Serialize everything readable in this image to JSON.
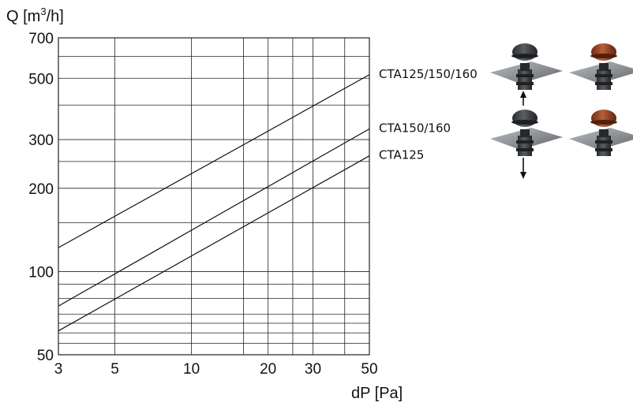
{
  "chart_data": {
    "type": "line",
    "title": "",
    "xlabel": "dP [Pa]",
    "ylabel_main": "Q [m",
    "ylabel_sup": "3",
    "ylabel_tail": "/h]",
    "x_scale": "log",
    "y_scale": "log",
    "xlim": [
      3,
      50
    ],
    "ylim": [
      50,
      700
    ],
    "grid": true,
    "legend": "labels at line ends (right)",
    "x_ticks": [
      3,
      5,
      10,
      20,
      30,
      50
    ],
    "x_tick_labels": [
      "3",
      "5",
      "10",
      "20",
      "30",
      "50"
    ],
    "y_ticks": [
      50,
      100,
      200,
      300,
      500,
      700
    ],
    "y_tick_labels": [
      "50",
      "100",
      "200",
      "300",
      "500",
      "700"
    ],
    "x_gridlines": [
      3,
      5,
      10,
      16,
      20,
      25,
      30,
      40,
      50
    ],
    "y_gridlines": [
      50,
      55,
      60,
      65,
      70,
      80,
      90,
      100,
      150,
      200,
      250,
      300,
      400,
      500,
      600,
      700
    ],
    "series": [
      {
        "name": "CTA125/150/160",
        "x": [
          3,
          50
        ],
        "y": [
          122,
          515
        ]
      },
      {
        "name": "CTA150/160",
        "x": [
          3,
          50
        ],
        "y": [
          75,
          328
        ]
      },
      {
        "name": "CTA125",
        "x": [
          3,
          50
        ],
        "y": [
          61,
          262
        ]
      }
    ]
  },
  "illustration": {
    "icons": [
      "roof-vent-dark-icon",
      "roof-vent-red-icon",
      "arrow-up-icon",
      "arrow-down-icon"
    ],
    "colors": {
      "dark": "#3c3f43",
      "red": "#9b4a2c",
      "plate": "#8e9296"
    }
  }
}
